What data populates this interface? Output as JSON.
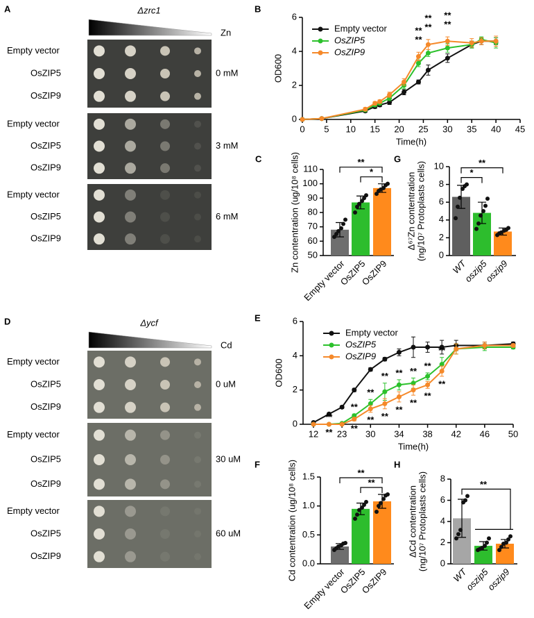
{
  "spot_assays": [
    {
      "letter": "A",
      "strain": "Δzrc1",
      "treatment": "Zn",
      "groups": [
        {
          "condition": "0 mM",
          "rows": [
            "Empty vector",
            "OsZIP5",
            "OsZIP9"
          ]
        },
        {
          "condition": "3 mM",
          "rows": [
            "Empty vector",
            "OsZIP5",
            "OsZIP9"
          ]
        },
        {
          "condition": "6 mM",
          "rows": [
            "Empty vector",
            "OsZIP5",
            "OsZIP9"
          ]
        }
      ]
    },
    {
      "letter": "D",
      "strain": "Δycf",
      "treatment": "Cd",
      "groups": [
        {
          "condition": "0 uM",
          "rows": [
            "Empty vector",
            "OsZIP5",
            "OsZIP9"
          ]
        },
        {
          "condition": "30 uM",
          "rows": [
            "Empty vector",
            "OsZIP5",
            "OsZIP9"
          ]
        },
        {
          "condition": "60 uM",
          "rows": [
            "Empty vector",
            "OsZIP5",
            "OsZIP9"
          ]
        }
      ]
    }
  ],
  "chart_data": [
    {
      "type": "line",
      "letter": "B",
      "xlabel": "Time(h)",
      "ylabel": "OD600",
      "x": [
        0,
        4,
        13,
        15,
        16,
        18,
        21,
        24,
        26,
        30,
        35,
        37,
        40
      ],
      "xlim": [
        0,
        45
      ],
      "xticks": [
        0,
        5,
        10,
        15,
        20,
        25,
        30,
        35,
        40,
        45
      ],
      "ylim": [
        0,
        6
      ],
      "yticks": [
        0,
        2,
        4,
        6
      ],
      "series": [
        {
          "name": "Empty vector",
          "color": "#111111",
          "italic": false,
          "values": [
            0,
            0.05,
            0.5,
            0.75,
            0.85,
            1.0,
            1.6,
            2.2,
            2.9,
            3.6,
            4.4,
            4.6,
            4.6
          ],
          "errors": [
            0.02,
            0.03,
            0.08,
            0.1,
            0.1,
            0.12,
            0.15,
            0.12,
            0.3,
            0.25,
            0.2,
            0.2,
            0.2
          ],
          "significance": [
            null,
            null,
            null,
            null,
            null,
            null,
            null,
            null,
            null,
            null,
            null,
            null,
            null
          ]
        },
        {
          "name": "OsZIP5",
          "color": "#2cc12c",
          "italic": true,
          "values": [
            0,
            0.05,
            0.55,
            0.85,
            0.95,
            1.25,
            2.0,
            3.3,
            3.9,
            4.2,
            4.4,
            4.7,
            4.5
          ],
          "errors": [
            0.02,
            0.03,
            0.08,
            0.1,
            0.1,
            0.15,
            0.2,
            0.2,
            0.2,
            0.25,
            0.2,
            0.15,
            0.3
          ],
          "significance": [
            null,
            null,
            null,
            null,
            null,
            null,
            null,
            "**",
            "**",
            "**",
            null,
            null,
            null
          ]
        },
        {
          "name": "OsZIP9",
          "color": "#f5892a",
          "italic": true,
          "values": [
            0,
            0.05,
            0.6,
            0.95,
            1.05,
            1.45,
            2.2,
            3.7,
            4.4,
            4.6,
            4.5,
            4.6,
            4.6
          ],
          "errors": [
            0.02,
            0.03,
            0.1,
            0.1,
            0.1,
            0.15,
            0.2,
            0.25,
            0.3,
            0.25,
            0.25,
            0.2,
            0.3
          ],
          "significance": [
            null,
            null,
            null,
            null,
            null,
            null,
            null,
            "**",
            "**",
            "**",
            null,
            null,
            null
          ]
        }
      ]
    },
    {
      "type": "bar",
      "letter": "C",
      "ylabel": [
        "Zn contentration (ug/10⁸ cells)"
      ],
      "italic_categories": false,
      "categories": [
        "Empty vector",
        "OsZIP5",
        "OsZIP9"
      ],
      "colors": [
        "#6e6e6e",
        "#2dbd2d",
        "#ff8a1c"
      ],
      "values": [
        68,
        87,
        97
      ],
      "errors": [
        5,
        4.5,
        3
      ],
      "points": [
        [
          63,
          65,
          67,
          69,
          72,
          75
        ],
        [
          80,
          84,
          86,
          88,
          90,
          92
        ],
        [
          93,
          95,
          96,
          97,
          99,
          100
        ]
      ],
      "ylim": [
        50,
        110
      ],
      "yticks": [
        50,
        60,
        70,
        80,
        90,
        100,
        110
      ],
      "comparisons": [
        {
          "groups": [
            "Empty vector",
            "OsZIP9"
          ],
          "label": "**"
        },
        {
          "groups": [
            "OsZIP5",
            "OsZIP9"
          ],
          "label": "*"
        }
      ]
    },
    {
      "type": "bar",
      "letter": "G",
      "ylabel": [
        "Δ⁶⁷Zn contentration",
        "(ng/10⁷ Protoplasts cells)"
      ],
      "italic_categories": true,
      "categories": [
        "WT",
        "oszip5",
        "oszip9"
      ],
      "colors": [
        "#5f5f5f",
        "#2dbd2d",
        "#ff8a1c"
      ],
      "values": [
        6.6,
        4.8,
        2.7
      ],
      "errors": [
        1.3,
        1.2,
        0.4
      ],
      "points": [
        [
          4.2,
          5.5,
          6.5,
          7.5,
          7.8,
          8.0
        ],
        [
          3.0,
          3.6,
          4.5,
          5.0,
          5.6,
          6.4
        ],
        [
          2.3,
          2.5,
          2.6,
          2.8,
          2.9,
          3.1
        ]
      ],
      "ylim": [
        0,
        10
      ],
      "yticks": [
        0,
        2,
        4,
        6,
        8,
        10
      ],
      "comparisons": [
        {
          "groups": [
            "WT",
            "oszip5"
          ],
          "label": "*"
        },
        {
          "groups": [
            "WT",
            "oszip9"
          ],
          "label": "**"
        }
      ]
    },
    {
      "type": "line",
      "letter": "E",
      "xlabel": "Time(h)",
      "ylabel": "OD600",
      "x": [
        12,
        18,
        23,
        26,
        30,
        32,
        34,
        36,
        38,
        40,
        42,
        46,
        50
      ],
      "xlim": [
        12,
        50
      ],
      "xticks": [
        12,
        23,
        30,
        34,
        38,
        42,
        46,
        50
      ],
      "ylim": [
        0,
        6
      ],
      "yticks": [
        0,
        2,
        4,
        6
      ],
      "series": [
        {
          "name": "Empty vector",
          "color": "#111111",
          "italic": false,
          "values": [
            0.1,
            0.6,
            1.0,
            2.0,
            3.2,
            3.8,
            4.2,
            4.5,
            4.5,
            4.5,
            4.6,
            4.6,
            4.7
          ],
          "errors": [
            0.02,
            0.05,
            0.08,
            0.1,
            0.1,
            0.1,
            0.2,
            0.6,
            0.3,
            0.4,
            0.3,
            0.2,
            0.1
          ],
          "significance": [
            null,
            null,
            null,
            null,
            null,
            null,
            null,
            null,
            null,
            null,
            null,
            null,
            null
          ]
        },
        {
          "name": "OsZIP5",
          "color": "#2cc12c",
          "italic": true,
          "values": [
            0,
            0,
            0.05,
            0.5,
            1.2,
            1.9,
            2.3,
            2.4,
            2.8,
            3.5,
            4.4,
            4.5,
            4.5
          ],
          "errors": [
            0.02,
            0.02,
            0.03,
            0.1,
            0.25,
            0.5,
            0.3,
            0.3,
            0.2,
            0.4,
            0.3,
            0.2,
            0.1
          ],
          "significance": [
            null,
            "**",
            null,
            "**",
            "**",
            "**",
            "**",
            "**",
            "**",
            "**",
            null,
            null,
            null
          ]
        },
        {
          "name": "OsZIP9",
          "color": "#f5892a",
          "italic": true,
          "values": [
            0,
            0,
            0,
            0.3,
            0.9,
            1.2,
            1.6,
            2.0,
            2.3,
            3.1,
            4.4,
            4.6,
            4.6
          ],
          "errors": [
            0.02,
            0.02,
            0.02,
            0.1,
            0.2,
            0.3,
            0.3,
            0.3,
            0.2,
            0.3,
            0.3,
            0.2,
            0.1
          ],
          "significance": [
            null,
            "**",
            null,
            "**",
            "**",
            "**",
            "**",
            "**",
            "**",
            "**",
            null,
            null,
            null
          ]
        }
      ]
    },
    {
      "type": "bar",
      "letter": "F",
      "ylabel": [
        "Cd contentration (ug/10⁸ cells)"
      ],
      "italic_categories": false,
      "categories": [
        "Empty vector",
        "OsZIP5",
        "OsZIP9"
      ],
      "colors": [
        "#6e6e6e",
        "#2dbd2d",
        "#ff8a1c"
      ],
      "values": [
        0.3,
        0.95,
        1.08
      ],
      "errors": [
        0.05,
        0.1,
        0.12
      ],
      "points": [
        [
          0.24,
          0.27,
          0.3,
          0.32,
          0.35,
          0.36
        ],
        [
          0.78,
          0.85,
          0.93,
          0.97,
          1.02,
          1.07
        ],
        [
          0.9,
          1.0,
          1.05,
          1.12,
          1.18,
          1.2
        ]
      ],
      "ylim": [
        0,
        1.5
      ],
      "yticks": [
        {
          "value": 0,
          "label": "0.0"
        },
        0.5,
        {
          "value": 1,
          "label": "1.0"
        },
        1.5
      ],
      "comparisons": [
        {
          "groups": [
            "Empty vector",
            "OsZIP9"
          ],
          "label": "**"
        },
        {
          "groups": [
            "OsZIP5",
            "OsZIP9"
          ],
          "label": "**"
        }
      ]
    },
    {
      "type": "bar",
      "letter": "H",
      "ylabel": [
        "ΔCd contentration",
        "(ng/10⁷ Protoplasts cells)"
      ],
      "italic_categories": true,
      "categories": [
        "WT",
        "oszip5",
        "oszip9"
      ],
      "colors": [
        "#a6a6a6",
        "#2dbd2d",
        "#ff8a1c"
      ],
      "values": [
        4.3,
        1.7,
        1.9
      ],
      "errors": [
        1.8,
        0.4,
        0.4
      ],
      "points": [
        [
          2.4,
          2.8,
          3.2,
          5.8,
          6.0,
          6.4
        ],
        [
          1.3,
          1.4,
          1.5,
          1.7,
          2.0,
          2.4
        ],
        [
          1.3,
          1.6,
          1.9,
          2.0,
          2.3,
          2.6
        ]
      ],
      "ylim": [
        0,
        8
      ],
      "yticks": [
        0,
        2,
        4,
        6,
        8
      ],
      "comparisons": [
        {
          "groups": [
            "WT",
            "oszip5",
            "oszip9"
          ],
          "label": "**"
        }
      ]
    }
  ]
}
